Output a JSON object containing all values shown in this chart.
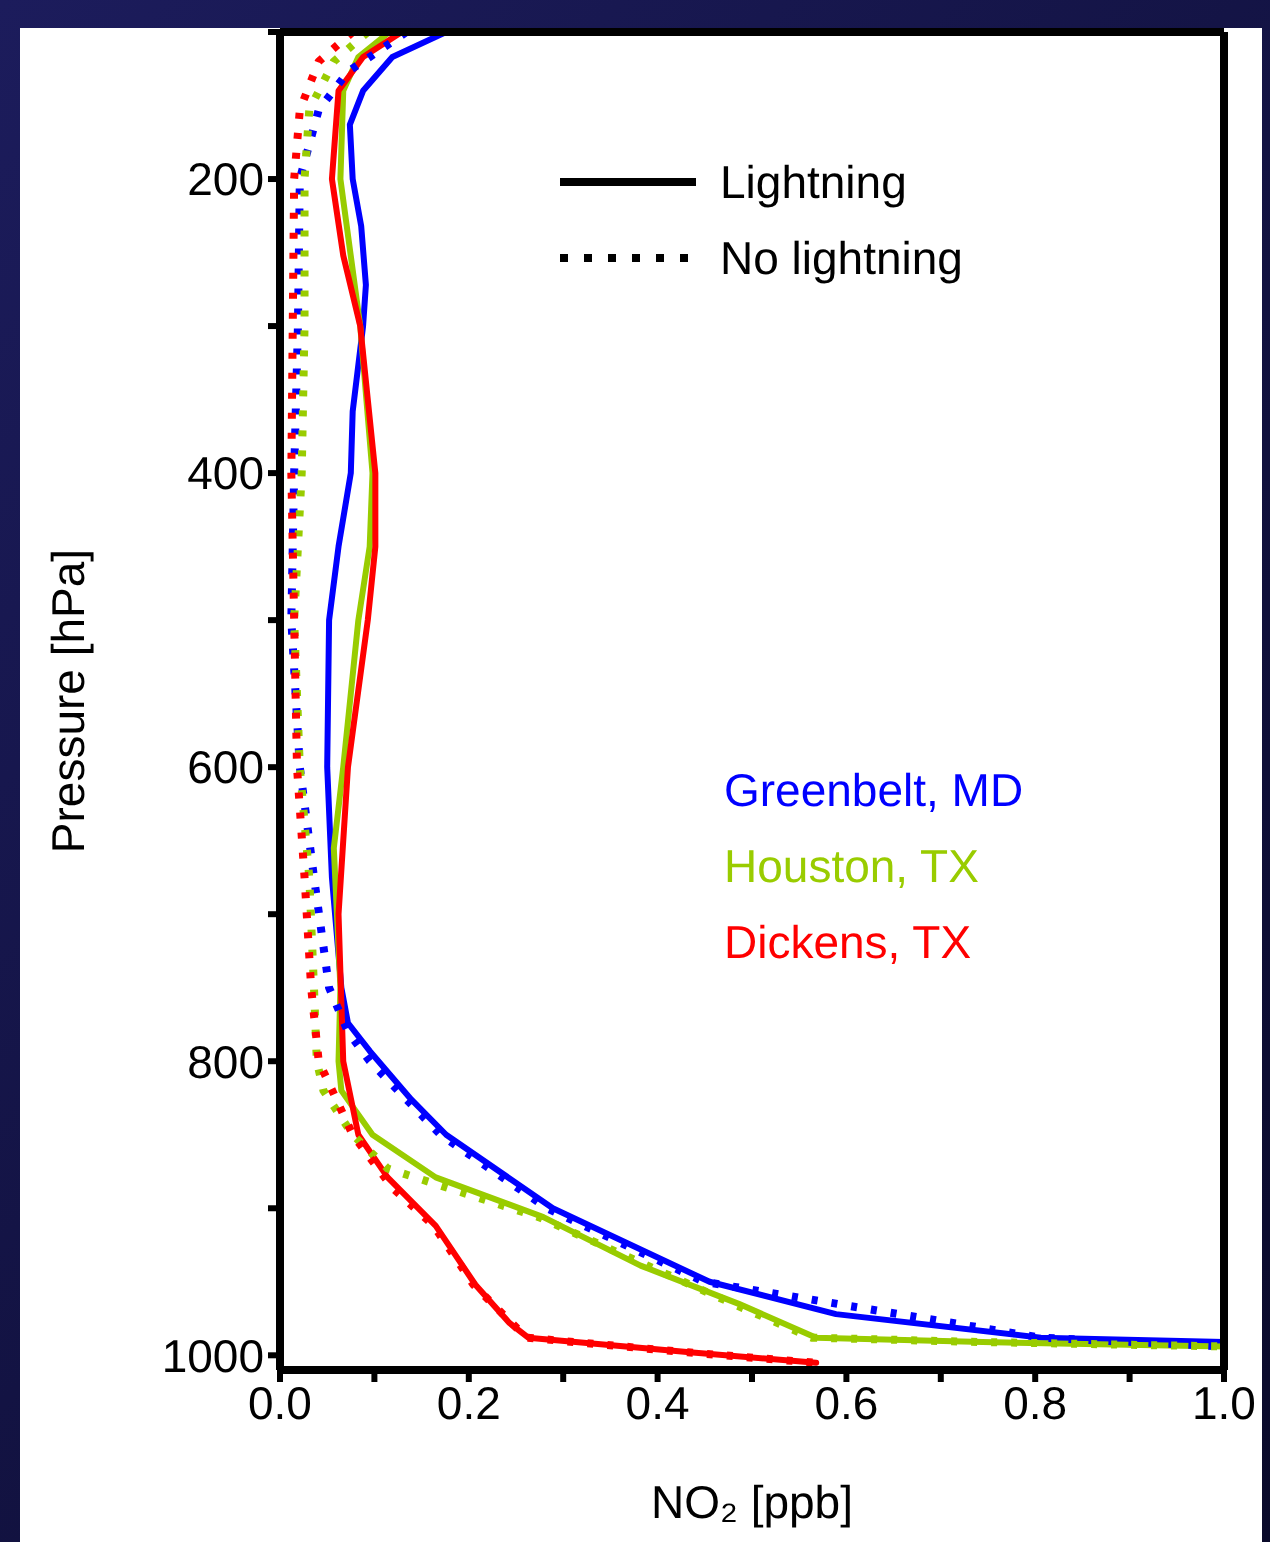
{
  "chart_data": {
    "type": "line",
    "xlabel": "NO₂ [ppb]",
    "ylabel": "Pressure [hPa]",
    "xlim": [
      0,
      1
    ],
    "ylim": [
      1010,
      100
    ],
    "xticks": [
      {
        "value": 0,
        "label": "0.0"
      },
      {
        "value": 0.1,
        "label": null
      },
      0.2,
      {
        "value": 0.3,
        "label": null
      },
      0.4,
      {
        "value": 0.5,
        "label": null
      },
      0.6,
      {
        "value": 0.7,
        "label": null
      },
      0.8,
      {
        "value": 0.9,
        "label": null
      },
      {
        "value": 1,
        "label": "1.0"
      }
    ],
    "yticks": [
      {
        "value": 100,
        "label": null
      },
      200,
      {
        "value": 300,
        "label": null
      },
      400,
      {
        "value": 500,
        "label": null
      },
      600,
      {
        "value": 700,
        "label": null
      },
      800,
      {
        "value": 900,
        "label": null
      },
      1000
    ],
    "legend": "center",
    "annotations": [
      "Lightning",
      "No lightning"
    ],
    "series": [
      {
        "name": "Greenbelt, MD",
        "color": "#0000ff",
        "line_style": "solid",
        "x": [
          0.176,
          0.119,
          0.088,
          0.074,
          0.077,
          0.086,
          0.091,
          0.088,
          0.077,
          0.075,
          0.062,
          0.052,
          0.05,
          0.055,
          0.065,
          0.072,
          0.095,
          0.139,
          0.176,
          0.289,
          0.455,
          0.589,
          0.806,
          1.0
        ],
        "values": [
          100,
          117,
          140,
          163,
          200,
          232,
          272,
          300,
          358,
          400,
          450,
          500,
          600,
          675,
          750,
          774,
          793,
          826,
          850,
          900,
          950,
          972,
          988,
          991
        ]
      },
      {
        "name": "Houston, TX",
        "color": "#99cc00",
        "line_style": "solid",
        "x": [
          0.116,
          0.083,
          0.067,
          0.064,
          0.085,
          0.098,
          0.095,
          0.083,
          0.067,
          0.057,
          0.064,
          0.062,
          0.065,
          0.098,
          0.165,
          0.279,
          0.382,
          0.486,
          0.568,
          0.744,
          1.0
        ],
        "values": [
          100,
          117,
          140,
          200,
          300,
          400,
          450,
          500,
          600,
          655,
          750,
          800,
          820,
          850,
          879,
          906,
          939,
          965,
          988,
          991,
          994
        ]
      },
      {
        "name": "Dickens, TX",
        "color": "#ff0000",
        "line_style": "solid",
        "x": [
          0.129,
          0.088,
          0.062,
          0.055,
          0.067,
          0.085,
          0.101,
          0.101,
          0.093,
          0.072,
          0.062,
          0.067,
          0.083,
          0.114,
          0.165,
          0.207,
          0.243,
          0.263,
          0.434,
          0.568
        ],
        "values": [
          100,
          117,
          140,
          200,
          252,
          300,
          400,
          450,
          500,
          600,
          700,
          800,
          850,
          879,
          912,
          952,
          978,
          988,
          998,
          1005
        ]
      },
      {
        "color": "#0000ff",
        "line_style": "dotted",
        "x": [
          0.134,
          0.072,
          0.041,
          0.021,
          0.019,
          0.015,
          0.012,
          0.021,
          0.036,
          0.052,
          0.072,
          0.095,
          0.17,
          0.283,
          0.449,
          0.806,
          1.0
        ],
        "values": [
          100,
          127,
          153,
          200,
          300,
          400,
          500,
          600,
          675,
          750,
          780,
          800,
          850,
          900,
          950,
          988,
          994
        ]
      },
      {
        "color": "#99cc00",
        "line_style": "dotted",
        "x": [
          0.093,
          0.057,
          0.031,
          0.026,
          0.026,
          0.023,
          0.015,
          0.021,
          0.031,
          0.036,
          0.039,
          0.046,
          0.077,
          0.114,
          0.274,
          0.48,
          0.563,
          0.744,
          1.0
        ],
        "values": [
          100,
          120,
          153,
          200,
          300,
          400,
          500,
          600,
          675,
          750,
          800,
          820,
          850,
          873,
          906,
          965,
          988,
          991,
          994
        ]
      },
      {
        "color": "#ff0000",
        "line_style": "dotted",
        "x": [
          0.077,
          0.041,
          0.021,
          0.015,
          0.012,
          0.018,
          0.026,
          0.033,
          0.041,
          0.077,
          0.119,
          0.163,
          0.205,
          0.261,
          0.432,
          0.566
        ],
        "values": [
          100,
          120,
          153,
          200,
          400,
          600,
          675,
          750,
          800,
          850,
          886,
          912,
          952,
          988,
          998,
          1005
        ]
      }
    ]
  }
}
